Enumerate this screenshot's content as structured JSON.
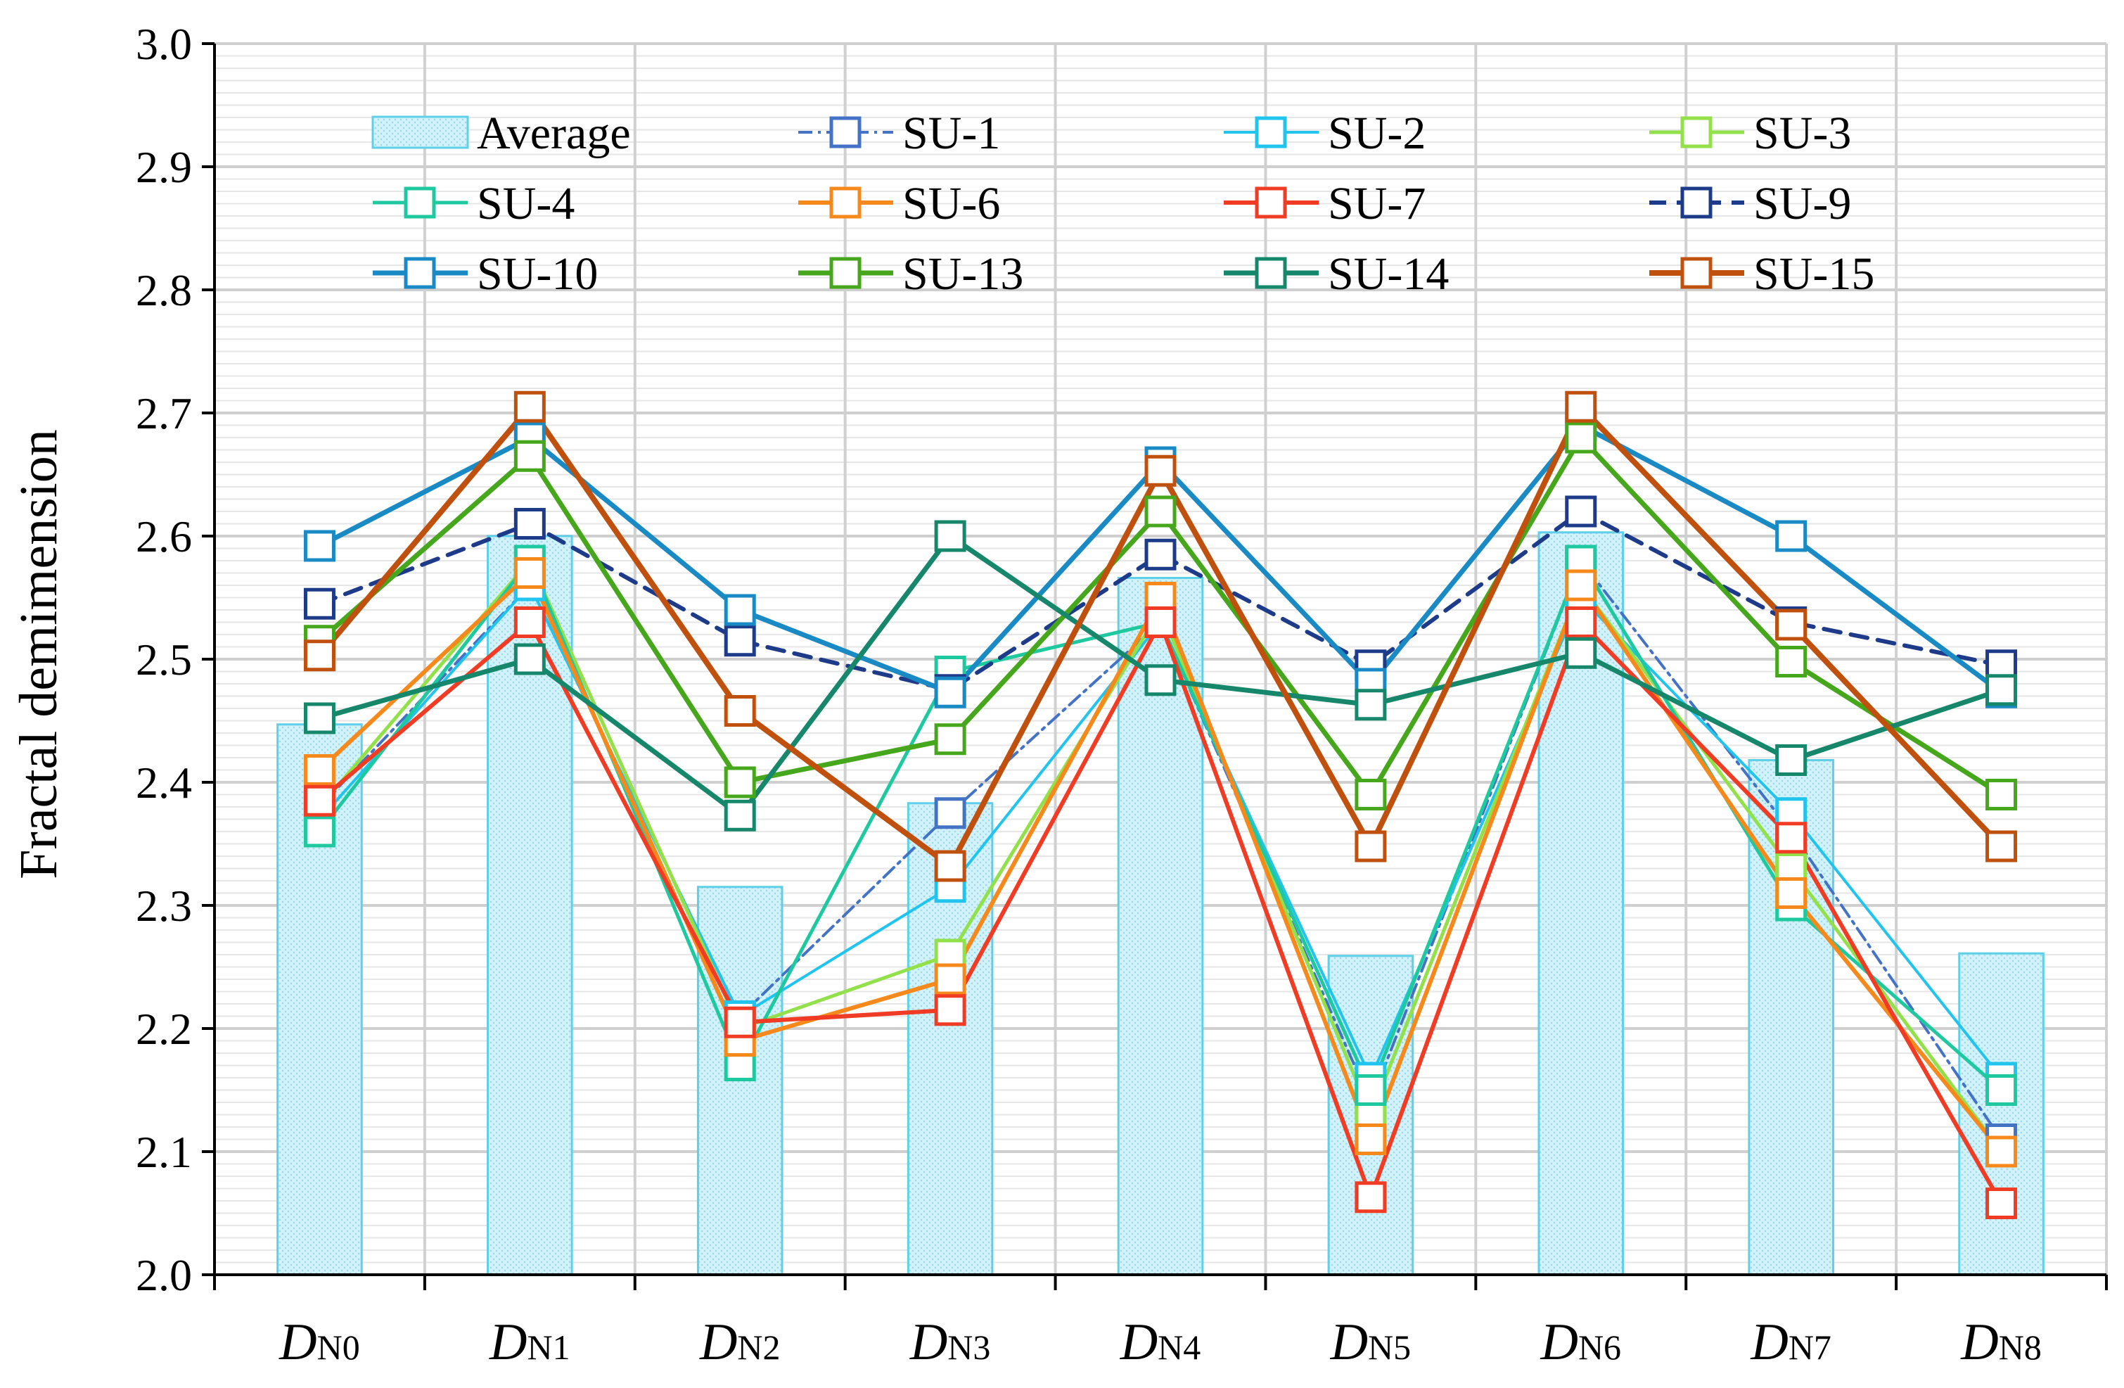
{
  "chart_data": {
    "type": "line",
    "title": "",
    "xlabel": "",
    "ylabel": "Fractal demimension",
    "ylim": [
      2.0,
      3.0
    ],
    "yticks": [
      "2.0",
      "2.1",
      "2.2",
      "2.3",
      "2.4",
      "2.5",
      "2.6",
      "2.7",
      "2.8",
      "2.9",
      "3.0"
    ],
    "categories": [
      {
        "main": "D",
        "sub": "N0"
      },
      {
        "main": "D",
        "sub": "N1"
      },
      {
        "main": "D",
        "sub": "N2"
      },
      {
        "main": "D",
        "sub": "N3"
      },
      {
        "main": "D",
        "sub": "N4"
      },
      {
        "main": "D",
        "sub": "N5"
      },
      {
        "main": "D",
        "sub": "N6"
      },
      {
        "main": "D",
        "sub": "N7"
      },
      {
        "main": "D",
        "sub": "N8"
      }
    ],
    "grid": true,
    "legend_position": "top",
    "bar_series": {
      "name": "Average",
      "color": "#5fd0e8",
      "fill": "#d4f2f9",
      "values": [
        2.447,
        2.6,
        2.315,
        2.383,
        2.566,
        2.259,
        2.603,
        2.418,
        2.261
      ]
    },
    "series": [
      {
        "name": "SU-1",
        "color": "#4472c4",
        "dash": "dashdot",
        "width": 4,
        "values": [
          2.38,
          2.56,
          2.21,
          2.375,
          2.53,
          2.14,
          2.58,
          2.36,
          2.11
        ]
      },
      {
        "name": "SU-2",
        "color": "#20c4ec",
        "dash": "solid",
        "width": 4,
        "values": [
          2.37,
          2.56,
          2.21,
          2.315,
          2.53,
          2.16,
          2.55,
          2.375,
          2.16
        ]
      },
      {
        "name": "SU-3",
        "color": "#92e04a",
        "dash": "solid",
        "width": 5,
        "values": [
          2.38,
          2.58,
          2.2,
          2.26,
          2.54,
          2.13,
          2.56,
          2.33,
          2.1
        ]
      },
      {
        "name": "SU-4",
        "color": "#1fc9a0",
        "dash": "solid",
        "width": 5,
        "values": [
          2.36,
          2.58,
          2.17,
          2.49,
          2.53,
          2.15,
          2.58,
          2.3,
          2.15
        ]
      },
      {
        "name": "SU-6",
        "color": "#f5891c",
        "dash": "solid",
        "width": 6,
        "values": [
          2.41,
          2.57,
          2.19,
          2.24,
          2.55,
          2.11,
          2.56,
          2.31,
          2.1
        ]
      },
      {
        "name": "SU-7",
        "color": "#f03c24",
        "dash": "solid",
        "width": 6,
        "values": [
          2.385,
          2.53,
          2.205,
          2.215,
          2.53,
          2.063,
          2.53,
          2.355,
          2.058
        ]
      },
      {
        "name": "SU-9",
        "color": "#1e3b8a",
        "dash": "dash",
        "width": 6,
        "values": [
          2.545,
          2.61,
          2.515,
          2.475,
          2.585,
          2.495,
          2.62,
          2.53,
          2.495
        ]
      },
      {
        "name": "SU-10",
        "color": "#1a8ac4",
        "dash": "solid",
        "width": 7,
        "values": [
          2.592,
          2.68,
          2.54,
          2.473,
          2.66,
          2.48,
          2.69,
          2.6,
          2.473
        ]
      },
      {
        "name": "SU-13",
        "color": "#46a61c",
        "dash": "solid",
        "width": 7,
        "values": [
          2.515,
          2.665,
          2.4,
          2.435,
          2.62,
          2.39,
          2.68,
          2.498,
          2.39
        ]
      },
      {
        "name": "SU-14",
        "color": "#16876a",
        "dash": "solid",
        "width": 7,
        "values": [
          2.452,
          2.5,
          2.373,
          2.6,
          2.483,
          2.463,
          2.505,
          2.418,
          2.475
        ]
      },
      {
        "name": "SU-15",
        "color": "#c0500e",
        "dash": "solid",
        "width": 8,
        "values": [
          2.503,
          2.705,
          2.458,
          2.332,
          2.653,
          2.348,
          2.705,
          2.528,
          2.348
        ]
      }
    ]
  }
}
